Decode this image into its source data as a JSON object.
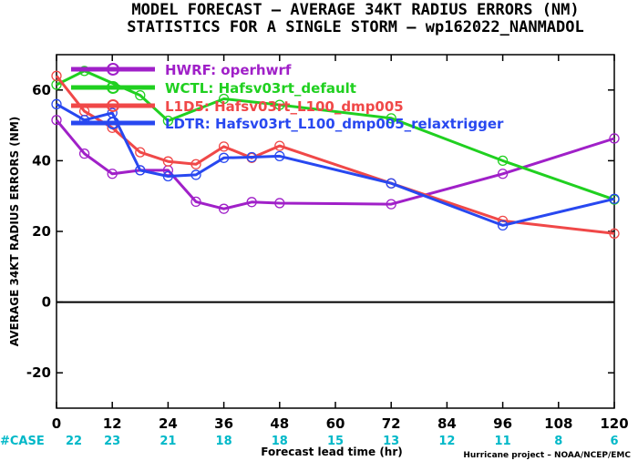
{
  "title_lines": [
    "MODEL FORECAST – AVERAGE 34KT RADIUS ERRORS (NM)",
    "STATISTICS FOR A SINGLE STORM – wp162022_NANMADOL"
  ],
  "credit": "Hurricane project – NOAA/NCEP/EMC",
  "colors": {
    "case_text": "#00b8c8",
    "hwrf": "#a020c8",
    "wctl": "#20d020",
    "l1d5": "#f04848",
    "ldtr": "#2848f0"
  },
  "chart_data": {
    "type": "line",
    "xlabel": "Forecast lead time (hr)",
    "ylabel": "AVERAGE 34KT RADIUS ERRORS (NM)",
    "xlim": [
      0,
      120
    ],
    "ylim": [
      -30,
      70
    ],
    "xticks": [
      0,
      12,
      24,
      36,
      48,
      60,
      72,
      84,
      96,
      108,
      120
    ],
    "yticks": [
      -20,
      0,
      20,
      40,
      60
    ],
    "zero_line": true,
    "legend_position": "top-left",
    "case_label": "#CASE",
    "cases": [
      {
        "x": 0,
        "n": "22"
      },
      {
        "x": 12,
        "n": "23"
      },
      {
        "x": 24,
        "n": "21"
      },
      {
        "x": 36,
        "n": "18"
      },
      {
        "x": 48,
        "n": "18"
      },
      {
        "x": 60,
        "n": "15"
      },
      {
        "x": 72,
        "n": "13"
      },
      {
        "x": 84,
        "n": "12"
      },
      {
        "x": 96,
        "n": "11"
      },
      {
        "x": 108,
        "n": "8"
      },
      {
        "x": 120,
        "n": "6"
      }
    ],
    "series": [
      {
        "name": "HWRF: operhwrf",
        "color_key": "hwrf",
        "x": [
          0,
          6,
          12,
          18,
          24,
          30,
          36,
          42,
          48,
          72,
          96,
          120
        ],
        "y": [
          51.5,
          42,
          36.3,
          37.3,
          37.3,
          28.4,
          26.4,
          28.3,
          28,
          27.7,
          36.3,
          46.3
        ]
      },
      {
        "name": "WCTL: Hafsv03rt_default",
        "color_key": "wctl",
        "x": [
          0,
          6,
          18,
          24,
          36,
          48,
          72,
          96,
          120
        ],
        "y": [
          61.5,
          65.4,
          58.5,
          51.3,
          57.5,
          55.8,
          52,
          40,
          29
        ]
      },
      {
        "name": "L1D5: Hafsv03rt_L100_dmp005",
        "color_key": "l1d5",
        "x": [
          0,
          6,
          12,
          18,
          24,
          30,
          36,
          42,
          48,
          72,
          96,
          120
        ],
        "y": [
          64,
          54,
          49.3,
          42.4,
          39.8,
          39,
          44,
          40.8,
          44.2,
          33.6,
          23,
          19.4
        ]
      },
      {
        "name": "LDTR: Hafsv03rt_L100_dmp005_relaxtrigger",
        "color_key": "ldtr",
        "x": [
          0,
          6,
          12,
          18,
          24,
          30,
          36,
          42,
          48,
          72,
          96,
          120
        ],
        "y": [
          56,
          51.5,
          53.5,
          37.3,
          35.6,
          36,
          40.8,
          41,
          41.3,
          33.6,
          21.7,
          29.2
        ]
      }
    ]
  }
}
